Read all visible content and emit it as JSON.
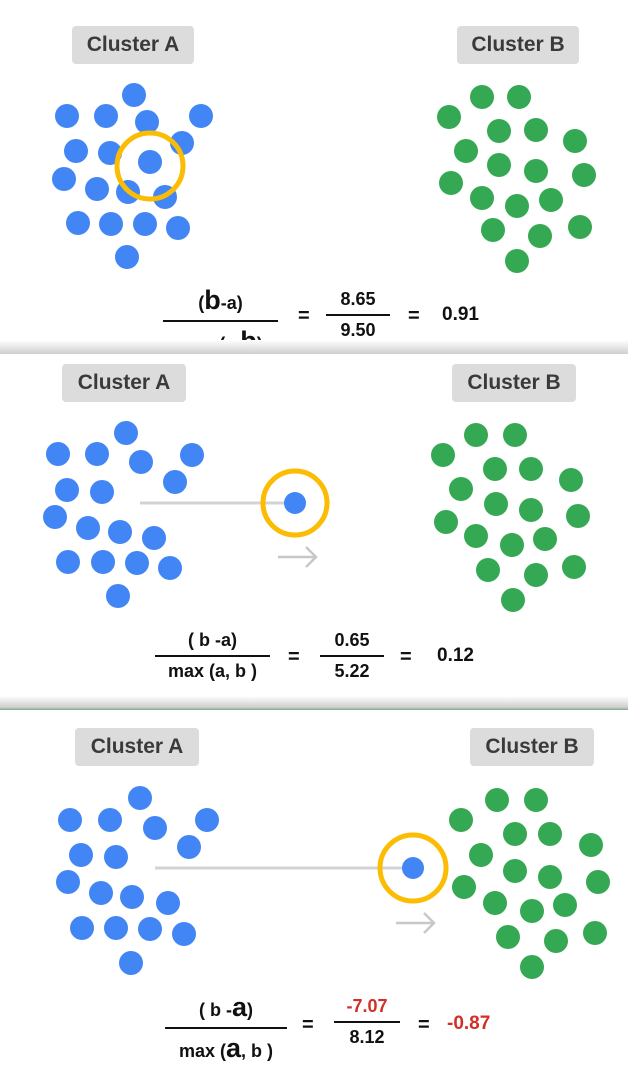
{
  "panels": [
    {
      "cluster_a_label": "Cluster A",
      "cluster_b_label": "Cluster B",
      "numerator_pre": "(",
      "numerator_b": "b",
      "numerator_post": "-a)",
      "denominator_pre": "max (a,",
      "denominator_b": "b",
      "denominator_post": ")",
      "eq1": "=",
      "value_num": "8.65",
      "value_den": "9.50",
      "eq2": "=",
      "result": "0.91"
    },
    {
      "cluster_a_label": "Cluster A",
      "cluster_b_label": "Cluster B",
      "numerator": "( b -a)",
      "denominator": "max (a, b )",
      "eq1": "=",
      "value_num": "0.65",
      "value_den": "5.22",
      "eq2": "=",
      "result": "0.12"
    },
    {
      "cluster_a_label": "Cluster A",
      "cluster_b_label": "Cluster B",
      "numerator_pre": "( b -",
      "numerator_a": "a",
      "numerator_post": ")",
      "denominator_pre": "max (",
      "denominator_a": "a",
      "denominator_post": ", b )",
      "eq1": "=",
      "value_num": "-7.07",
      "value_den": "8.12",
      "eq2": "=",
      "result": "-0.87"
    }
  ],
  "colors": {
    "cluster_a": "#4285f4",
    "cluster_b": "#34a853",
    "highlight_ring": "#fbbc04",
    "line": "#d3d3d3",
    "negative": "#d22f27"
  },
  "icons": [
    "point-dot",
    "highlight-ring-icon",
    "arrow-right-icon"
  ]
}
